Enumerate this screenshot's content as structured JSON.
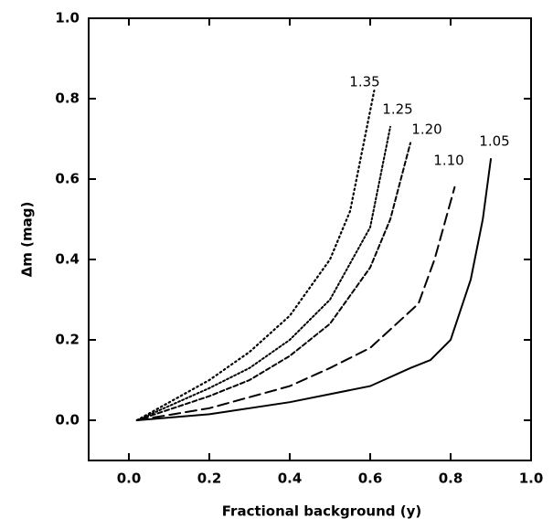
{
  "chart_data": {
    "type": "line",
    "x_label": "Fractional background (y)",
    "y_label": "Δm  (mag)",
    "xlim": [
      -0.1,
      1.0
    ],
    "ylim": [
      -0.1,
      1.0
    ],
    "xticks": [
      {
        "value": 0,
        "label": "0.0"
      },
      {
        "value": 0.2,
        "label": "0.2"
      },
      {
        "value": 0.4,
        "label": "0.4"
      },
      {
        "value": 0.6,
        "label": "0.6"
      },
      {
        "value": 0.8,
        "label": "0.8"
      },
      {
        "value": 1,
        "label": "1.0"
      }
    ],
    "yticks": [
      {
        "value": 0,
        "label": "0.0"
      },
      {
        "value": 0.2,
        "label": "0.2"
      },
      {
        "value": 0.4,
        "label": "0.4"
      },
      {
        "value": 0.6,
        "label": "0.6"
      },
      {
        "value": 0.8,
        "label": "0.8"
      },
      {
        "value": 1,
        "label": "1.0"
      }
    ],
    "series": [
      {
        "name": "1.35",
        "color": "#000000",
        "style": "dotted",
        "x": [
          0.02,
          0.2,
          0.3,
          0.4,
          0.5,
          0.55,
          0.61
        ],
        "values": [
          0,
          0.1,
          0.17,
          0.26,
          0.4,
          0.52,
          0.82
        ]
      },
      {
        "name": "1.25",
        "color": "#000000",
        "style": "dashdot",
        "x": [
          0.02,
          0.2,
          0.3,
          0.4,
          0.5,
          0.6,
          0.65
        ],
        "values": [
          0,
          0.08,
          0.13,
          0.2,
          0.3,
          0.48,
          0.73
        ]
      },
      {
        "name": "1.20",
        "color": "#000000",
        "style": "shortdash",
        "x": [
          0.02,
          0.2,
          0.3,
          0.4,
          0.5,
          0.6,
          0.65,
          0.7
        ],
        "values": [
          0,
          0.06,
          0.1,
          0.16,
          0.24,
          0.38,
          0.5,
          0.69
        ]
      },
      {
        "name": "1.10",
        "color": "#000000",
        "style": "longdash",
        "x": [
          0.02,
          0.2,
          0.4,
          0.5,
          0.6,
          0.72,
          0.76,
          0.81
        ],
        "values": [
          0,
          0.03,
          0.085,
          0.13,
          0.18,
          0.29,
          0.4,
          0.58
        ]
      },
      {
        "name": "1.05",
        "color": "#000000",
        "style": "solid",
        "x": [
          0.02,
          0.2,
          0.4,
          0.6,
          0.7,
          0.75,
          0.8,
          0.85,
          0.88,
          0.9
        ],
        "values": [
          0,
          0.015,
          0.045,
          0.085,
          0.13,
          0.15,
          0.2,
          0.35,
          0.5,
          0.65
        ]
      }
    ]
  }
}
